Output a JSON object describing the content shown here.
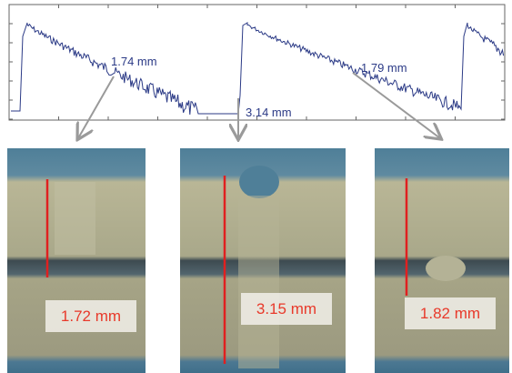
{
  "plot": {
    "annotations": [
      "1.74 mm",
      "3.14 mm",
      "1.79 mm"
    ]
  },
  "panels": [
    {
      "label": "1.72 mm"
    },
    {
      "label": "3.15 mm"
    },
    {
      "label": "1.82 mm"
    }
  ]
}
